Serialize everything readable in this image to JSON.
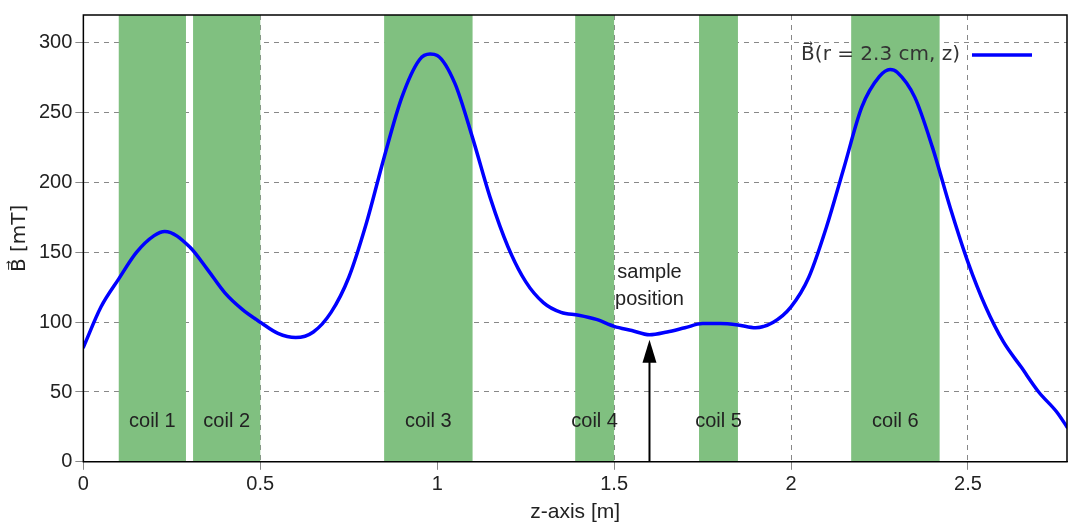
{
  "chart_data": {
    "type": "line",
    "xlabel": "z-axis [m]",
    "ylabel": "B⃗ [mT]",
    "xlim": [
      0,
      2.78
    ],
    "xticks": [
      0,
      0.5,
      1,
      1.5,
      2,
      2.5
    ],
    "ylim": [
      0,
      320
    ],
    "yticks": [
      0,
      50,
      100,
      150,
      200,
      250,
      300
    ],
    "grid": true,
    "legend": "top right",
    "line_style": "solid",
    "marker": "none",
    "series": [
      {
        "name": "B⃗(r = 2.3 cm, z)",
        "color": "#0000ff",
        "x": [
          0,
          0.05,
          0.1,
          0.15,
          0.2,
          0.23,
          0.3,
          0.35,
          0.4,
          0.45,
          0.5,
          0.55,
          0.6,
          0.65,
          0.7,
          0.75,
          0.8,
          0.85,
          0.9,
          0.95,
          0.98,
          1.0,
          1.05,
          1.1,
          1.15,
          1.2,
          1.25,
          1.3,
          1.35,
          1.4,
          1.45,
          1.5,
          1.55,
          1.6,
          1.65,
          1.7,
          1.75,
          1.8,
          1.85,
          1.9,
          1.95,
          2.0,
          2.05,
          2.1,
          2.15,
          2.2,
          2.25,
          2.28,
          2.3,
          2.35,
          2.4,
          2.45,
          2.5,
          2.55,
          2.6,
          2.65,
          2.7,
          2.75,
          2.78
        ],
        "values": [
          82,
          111,
          131,
          150,
          162,
          165,
          154,
          138,
          121,
          109,
          100,
          92,
          89,
          93,
          107,
          132,
          171,
          218,
          261,
          288,
          292,
          291,
          271,
          232,
          189,
          154,
          129,
          114,
          107,
          105,
          102,
          97,
          94,
          91,
          93,
          96,
          99,
          99,
          98,
          96,
          100,
          111,
          132,
          168,
          211,
          254,
          276,
          281,
          279,
          261,
          225,
          182,
          143,
          111,
          86,
          68,
          50,
          36,
          25
        ]
      }
    ],
    "bands": [
      {
        "axis": "x",
        "from": 0.1,
        "to": 0.29,
        "label": "coil 1",
        "color": "#80c080"
      },
      {
        "axis": "x",
        "from": 0.31,
        "to": 0.5,
        "label": "coil 2",
        "color": "#80c080"
      },
      {
        "axis": "x",
        "from": 0.85,
        "to": 1.1,
        "label": "coil 3",
        "color": "#80c080"
      },
      {
        "axis": "x",
        "from": 1.39,
        "to": 1.5,
        "label": "coil 4",
        "color": "#80c080"
      },
      {
        "axis": "x",
        "from": 1.74,
        "to": 1.85,
        "label": "coil 5",
        "color": "#80c080"
      },
      {
        "axis": "x",
        "from": 2.17,
        "to": 2.42,
        "label": "coil 6",
        "color": "#80c080"
      }
    ],
    "annotations": [
      {
        "text": "sample position",
        "x": 1.6,
        "y": 91
      }
    ]
  }
}
